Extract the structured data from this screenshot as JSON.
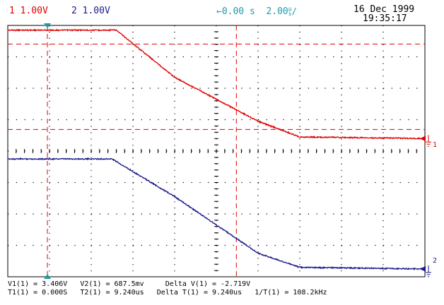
{
  "header": {
    "ch1_number": "1",
    "ch1_scale": "1.00V",
    "ch2_number": "2",
    "ch2_scale": "1.00V",
    "time_offset": "0.00 s",
    "time_scale": "2.00",
    "time_unit_top": "µ",
    "time_unit_bottom": "s",
    "date": "16 Dec 1999",
    "time": "19:35:17"
  },
  "markers": {
    "ch1_ground": "1",
    "ch2_ground": "2"
  },
  "measurements": {
    "v1": "V1(1) = 3.406V",
    "v2": "V2(1) = 687.5mv",
    "delta_v": "Delta V(1) = -2.719V",
    "t1": "T1(1) = 0.000S",
    "t2": "T2(1) = 9.240us",
    "delta_t": "Delta T(1) = 9.240us",
    "inv_t": "1/T(1) = 108.2kHz"
  },
  "colors": {
    "ch1": "#e00000",
    "ch2": "#1a1a8c",
    "cursor_marker": "#1f9aa8",
    "grid": "#000000"
  },
  "chart_data": {
    "type": "line",
    "grid": {
      "x_divisions": 10,
      "y_divisions": 8,
      "volts_per_div": 1.0,
      "time_per_div_us": 2.0
    },
    "series": [
      {
        "channel": 1,
        "x_us": [
          -10,
          -4.8,
          -2,
          2,
          4,
          10
        ],
        "y_div": [
          3.85,
          3.85,
          2.35,
          0.95,
          0.45,
          0.4
        ]
      },
      {
        "channel": 2,
        "x_us": [
          -10,
          -5.0,
          -2,
          2,
          4,
          10
        ],
        "y_div": [
          -0.25,
          -0.25,
          -1.45,
          -3.25,
          -3.7,
          -3.75
        ]
      }
    ],
    "cursors": {
      "time_us": [
        -8.1,
        0.96
      ],
      "volts_ch1": [
        3.406,
        0.6875
      ]
    }
  }
}
